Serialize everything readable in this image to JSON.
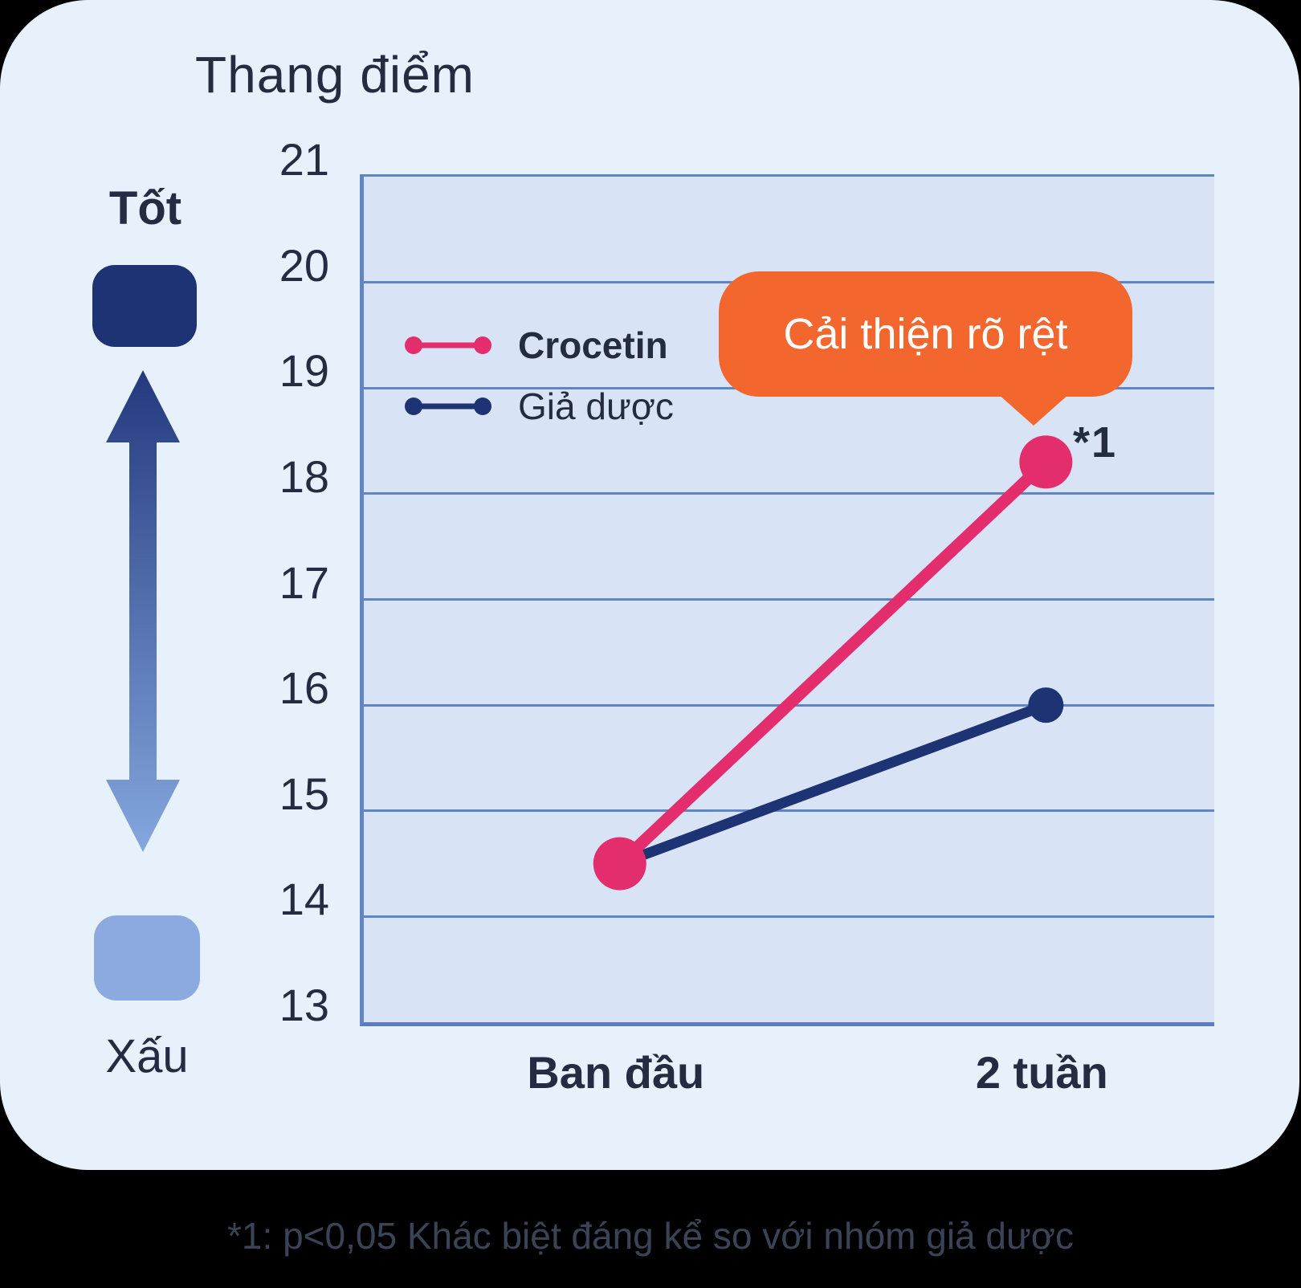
{
  "title": "Thang điểm",
  "scale_indicator": {
    "good_label": "Tốt",
    "bad_label": "Xấu"
  },
  "callout": {
    "text": "Cải thiện rõ rệt",
    "marker": "*1"
  },
  "footnote": "*1: p<0,05 Khác biệt đáng kể so với nhóm giả dược",
  "colors": {
    "card_bg": "#E6F1FC",
    "plot_bg": "#D8E3F6",
    "grid": "#6185C3",
    "crocetin_pink": "#E32D6C",
    "placebo_navy": "#1D3374",
    "callout_orange": "#F3662D",
    "good_box": "#1D3374",
    "bad_box": "#8CAADF",
    "text_dark": "#232C40"
  },
  "chart_data": {
    "type": "line",
    "categories": [
      "Ban đầu",
      "2 tuần"
    ],
    "series": [
      {
        "name": "Crocetin",
        "values": [
          14.5,
          18.3
        ],
        "color": "#E32D6C"
      },
      {
        "name": "Giả dược",
        "values": [
          14.5,
          16.0
        ],
        "color": "#1D3374"
      }
    ],
    "ylabel": "Thang điểm",
    "ylim": [
      13,
      21
    ],
    "ytick_step": 1,
    "grid": "horizontal",
    "legend_position": "inside-top-left",
    "annotations": [
      {
        "text": "Cải thiện rõ rệt",
        "marker": "*1",
        "target_series": "Crocetin",
        "target_category": "2 tuần"
      }
    ]
  }
}
